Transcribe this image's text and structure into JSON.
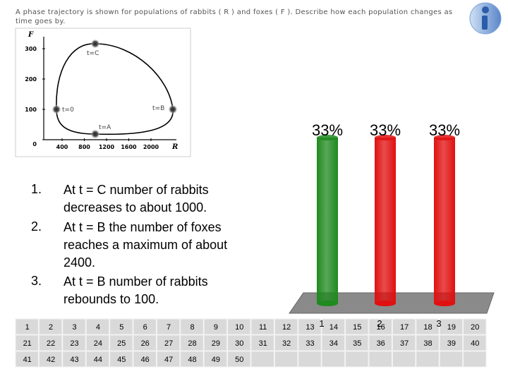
{
  "question": "A phase trajectory is shown for populations of rabbits ( R ) and foxes ( F ). Describe how each population changes as time goes by.",
  "phase_plot": {
    "x_label": "R",
    "y_label": "F",
    "xticks": [
      400,
      800,
      1200,
      1600,
      2000
    ],
    "yticks": [
      0,
      100,
      200,
      300
    ],
    "points": [
      "t=C",
      "t=0",
      "t=B",
      "t=A"
    ]
  },
  "options": [
    {
      "number": "1.",
      "text": "At t = C number of rabbits decreases to about 1000."
    },
    {
      "number": "2.",
      "text": "At t = B the number of foxes reaches a maximum of about 2400."
    },
    {
      "number": "3.",
      "text": "At t = B number of rabbits rebounds to 100."
    }
  ],
  "chart_data": {
    "type": "bar",
    "categories": [
      "1",
      "2",
      "3"
    ],
    "values": [
      33,
      33,
      33
    ],
    "value_labels": [
      "33%",
      "33%",
      "33%"
    ],
    "colors": [
      "#1f8a1f",
      "#e01010",
      "#e01010"
    ]
  },
  "response_grid": {
    "rows": [
      [
        1,
        2,
        3,
        4,
        5,
        6,
        7,
        8,
        9,
        10,
        11,
        12,
        13,
        14,
        15,
        16,
        17,
        18,
        19,
        20
      ],
      [
        21,
        22,
        23,
        24,
        25,
        26,
        27,
        28,
        29,
        30,
        31,
        32,
        33,
        34,
        35,
        36,
        37,
        38,
        39,
        40
      ],
      [
        41,
        42,
        43,
        44,
        45,
        46,
        47,
        48,
        49,
        50
      ]
    ]
  }
}
